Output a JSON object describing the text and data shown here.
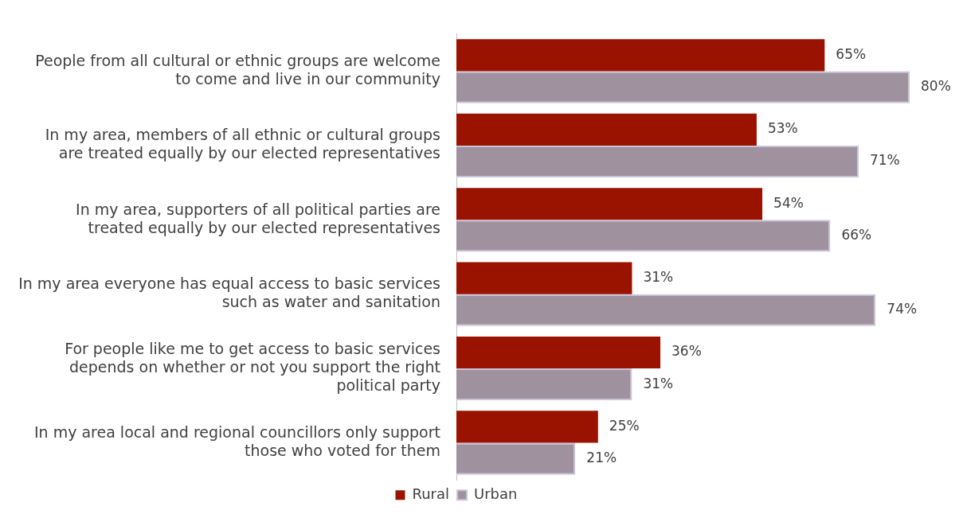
{
  "chart_data": {
    "type": "bar",
    "orientation": "horizontal",
    "legend": "bottom",
    "data_labels": true,
    "categories": [
      "People from all cultural or ethnic groups are welcome to come and live in our community",
      "In my area, members of all ethnic or cultural groups are treated equally by our elected representatives",
      "In my area, supporters of all political parties are treated equally by our elected representatives",
      "In my area everyone has equal access to basic services such as water and sanitation",
      "For people like me to get access to basic services depends on whether or not you support the right political party",
      "In my area local and regional councillors only support those who voted for them"
    ],
    "series": [
      {
        "name": "Rural",
        "color": "#991300",
        "values": [
          65,
          53,
          54,
          31,
          36,
          25
        ],
        "value_labels": [
          "65%",
          "53%",
          "54%",
          "31%",
          "36%",
          "25%"
        ]
      },
      {
        "name": "Urban",
        "color": "#a0919f",
        "values": [
          80,
          71,
          66,
          74,
          31,
          21
        ],
        "value_labels": [
          "80%",
          "71%",
          "66%",
          "74%",
          "31%",
          "21%"
        ]
      }
    ]
  }
}
